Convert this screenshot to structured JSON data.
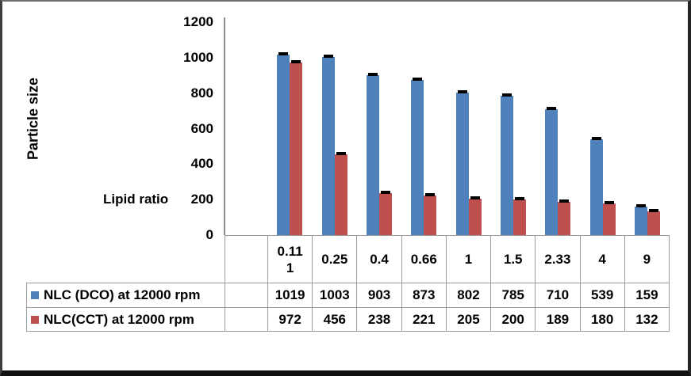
{
  "chart_data": {
    "type": "bar",
    "title": "",
    "ylabel": "Particle size",
    "xlabel": "Lipid ratio",
    "ylim": [
      0,
      1200
    ],
    "yticks": [
      0,
      200,
      400,
      600,
      800,
      1000,
      1200
    ],
    "grid": false,
    "error_bars": "small black caps on top of every bar",
    "legend_position": "left column of attached data table",
    "categories": [
      "0.111",
      "0.25",
      "0.4",
      "0.66",
      "1",
      "1.5",
      "2.33",
      "4",
      "9"
    ],
    "category_display": [
      "0.11\n1",
      "0.25",
      "0.4",
      "0.66",
      "1",
      "1.5",
      "2.33",
      "4",
      "9"
    ],
    "series": [
      {
        "name": "NLC (DCO) at 12000 rpm",
        "color": "#4F81BD",
        "values": [
          1019,
          1003,
          903,
          873,
          802,
          785,
          710,
          539,
          159
        ]
      },
      {
        "name": "NLC(CCT) at 12000 rpm",
        "color": "#C0504D",
        "values": [
          972,
          456,
          238,
          221,
          205,
          200,
          189,
          180,
          132
        ]
      }
    ],
    "colors": {
      "axis_line": "#8e8e8e",
      "table_border": "#9c9c9c",
      "error_cap": "#000000",
      "text": "#000000",
      "background": "#ffffff"
    }
  }
}
